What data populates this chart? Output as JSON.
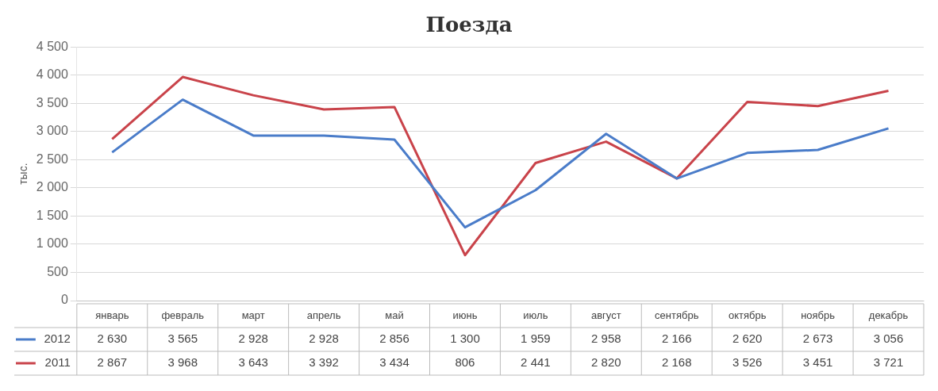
{
  "chart_data": {
    "type": "line",
    "title": "Поезда",
    "ylabel": "тыс.",
    "categories": [
      "январь",
      "февраль",
      "март",
      "апрель",
      "май",
      "июнь",
      "июль",
      "август",
      "сентябрь",
      "октябрь",
      "ноябрь",
      "декабрь"
    ],
    "series": [
      {
        "name": "2012",
        "color": "#4a7cc9",
        "values": [
          2630,
          3565,
          2928,
          2928,
          2856,
          1300,
          1959,
          2958,
          2166,
          2620,
          2673,
          3056
        ]
      },
      {
        "name": "2011",
        "color": "#c9434a",
        "values": [
          2867,
          3968,
          3643,
          3392,
          3434,
          806,
          2441,
          2820,
          2168,
          3526,
          3451,
          3721
        ]
      }
    ],
    "ylim": [
      0,
      4500
    ],
    "yticks": [
      0,
      500,
      1000,
      1500,
      2000,
      2500,
      3000,
      3500,
      4000,
      4500
    ],
    "grid": "y",
    "legend": "bottom",
    "data_labels": true,
    "marker": "none",
    "line_style": "solid"
  }
}
